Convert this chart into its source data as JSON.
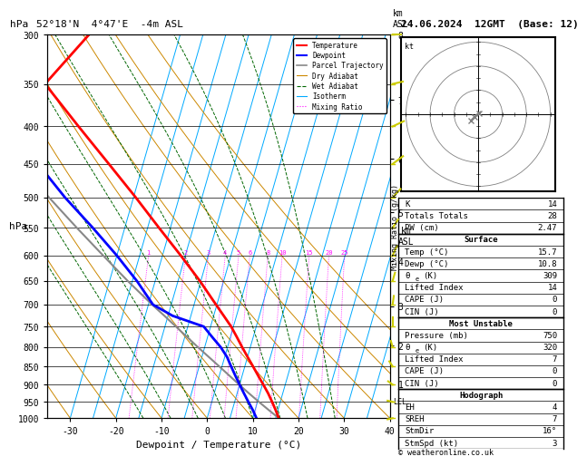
{
  "title_left": "52°18'N  4°47'E  -4m ASL",
  "title_right": "24.06.2024  12GMT  (Base: 12)",
  "label_hpa": "hPa",
  "xlabel": "Dewpoint / Temperature (°C)",
  "pressure_ticks": [
    300,
    350,
    400,
    450,
    500,
    550,
    600,
    650,
    700,
    750,
    800,
    850,
    900,
    950,
    1000
  ],
  "temp_ticks": [
    -30,
    -20,
    -10,
    0,
    10,
    20,
    30,
    40
  ],
  "temp_min": -35,
  "temp_max": 40,
  "km_ticks": [
    1,
    2,
    3,
    4,
    5,
    6,
    7,
    8
  ],
  "km_pressures": [
    895,
    790,
    695,
    600,
    512,
    430,
    355,
    287
  ],
  "mixing_ratio_lines": [
    1,
    2,
    3,
    4,
    5,
    6,
    8,
    10,
    15,
    20,
    25
  ],
  "isotherm_temps": [
    -30,
    -25,
    -20,
    -15,
    -10,
    -5,
    0,
    5,
    10,
    15,
    20,
    25,
    30,
    35,
    40
  ],
  "dry_adiabat_thetas": [
    -30,
    -20,
    -10,
    0,
    10,
    20,
    30,
    40,
    50,
    60
  ],
  "wet_adiabat_T0s": [
    -14,
    -8,
    -2,
    4,
    10,
    16,
    22,
    28
  ],
  "skew_factor": 20,
  "temperature_profile": {
    "pressure": [
      1000,
      975,
      950,
      925,
      900,
      875,
      850,
      825,
      800,
      775,
      750,
      725,
      700,
      650,
      600,
      550,
      500,
      450,
      400,
      350,
      300
    ],
    "temp": [
      15.7,
      14.5,
      13.2,
      11.8,
      10.2,
      8.5,
      6.8,
      5.0,
      3.2,
      1.4,
      -0.5,
      -2.8,
      -5.2,
      -10.2,
      -16.0,
      -22.5,
      -29.5,
      -37.5,
      -46.5,
      -56.5,
      -50.0
    ]
  },
  "dewpoint_profile": {
    "pressure": [
      1000,
      975,
      950,
      925,
      900,
      875,
      850,
      825,
      800,
      775,
      750,
      725,
      700,
      650,
      600,
      550,
      500,
      450,
      400,
      350,
      300
    ],
    "temp": [
      10.8,
      9.5,
      8.0,
      6.5,
      5.0,
      3.5,
      2.0,
      0.5,
      -1.5,
      -4.0,
      -6.5,
      -14.0,
      -19.0,
      -24.0,
      -30.0,
      -37.0,
      -45.0,
      -53.0,
      -57.0,
      -62.0,
      -65.0
    ]
  },
  "parcel_trajectory": {
    "pressure": [
      1000,
      975,
      950,
      925,
      900,
      875,
      850,
      825,
      800,
      775,
      750,
      725,
      700,
      650,
      600,
      550,
      500,
      450,
      400,
      350,
      300
    ],
    "temp": [
      15.7,
      13.0,
      10.3,
      7.6,
      4.9,
      2.2,
      -0.6,
      -3.5,
      -6.5,
      -9.5,
      -12.6,
      -15.8,
      -19.2,
      -26.0,
      -33.0,
      -40.5,
      -48.5,
      -57.0,
      -60.0,
      -64.0,
      -69.0
    ]
  },
  "lcl_pressure": 950,
  "temp_color": "#ff0000",
  "dewpoint_color": "#0000ff",
  "parcel_color": "#888888",
  "isotherm_color": "#00aaff",
  "dry_adiabat_color": "#cc8800",
  "wet_adiabat_color": "#006600",
  "mixing_ratio_color": "#ff00ff",
  "wind_barb_color": "#cccc00",
  "background_color": "#ffffff",
  "stats": {
    "K": 14,
    "Totals_Totals": 28,
    "PW_cm": 2.47,
    "Surface_Temp": 15.7,
    "Surface_Dewp": 10.8,
    "Surface_theta_e": 309,
    "Surface_Lifted_Index": 14,
    "Surface_CAPE": 0,
    "Surface_CIN": 0,
    "MU_Pressure": 750,
    "MU_theta_e": 320,
    "MU_Lifted_Index": 7,
    "MU_CAPE": 0,
    "MU_CIN": 0,
    "EH": 4,
    "SREH": 7,
    "StmDir": 16,
    "StmSpd": 3
  },
  "copyright": "© weatheronline.co.uk",
  "font_family": "monospace"
}
